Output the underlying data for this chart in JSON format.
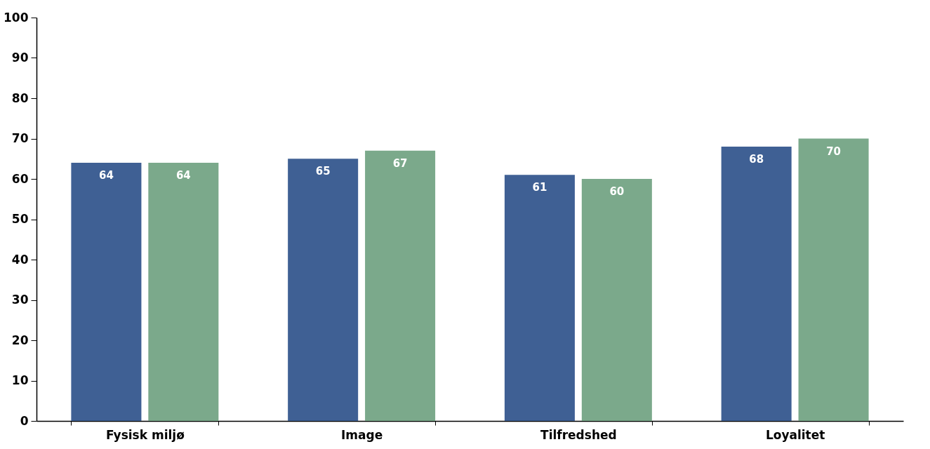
{
  "chart_data": {
    "type": "bar",
    "categories": [
      "Fysisk miljø",
      "Image",
      "Tilfredshed",
      "Loyalitet"
    ],
    "series": [
      {
        "color": "#3f6094",
        "values": [
          64,
          65,
          61,
          68
        ]
      },
      {
        "color": "#7ba98b",
        "values": [
          64,
          67,
          60,
          70
        ]
      }
    ],
    "ylim": [
      0,
      100
    ],
    "yticks": [
      0,
      10,
      20,
      30,
      40,
      50,
      60,
      70,
      80,
      90,
      100
    ],
    "grid": false,
    "legend": false,
    "data_labels": true
  }
}
